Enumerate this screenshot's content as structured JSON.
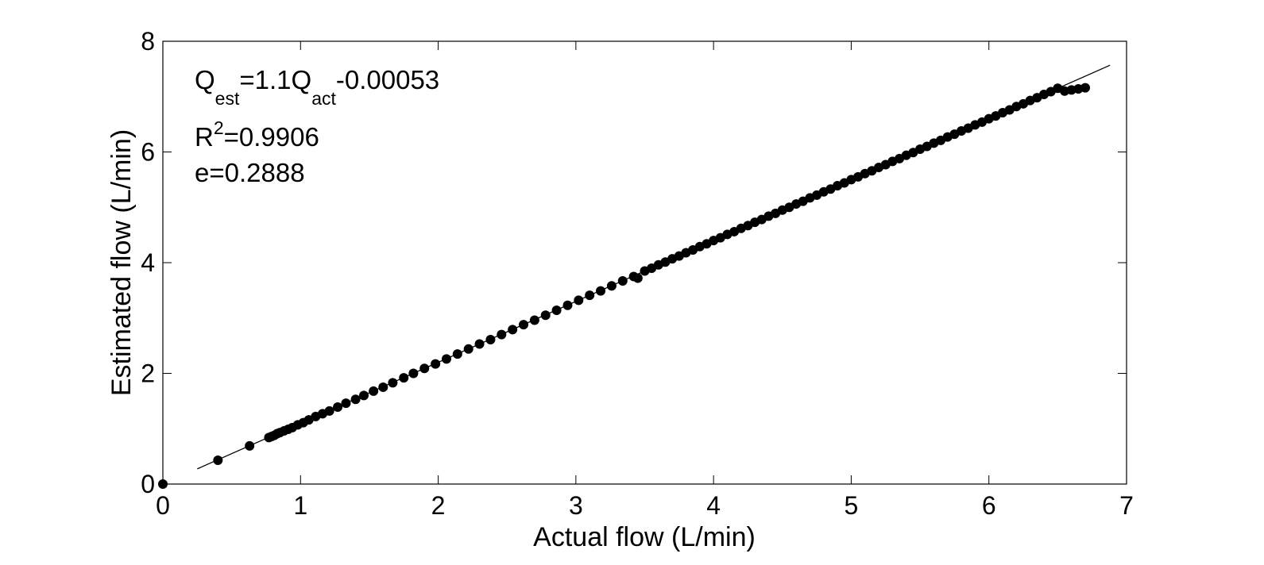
{
  "chart_data": {
    "type": "scatter",
    "title": "",
    "xlabel": "Actual flow (L/min)",
    "ylabel": "Estimated flow (L/min)",
    "xlim": [
      0,
      7
    ],
    "ylim": [
      0,
      8
    ],
    "xticks": [
      0,
      1,
      2,
      3,
      4,
      5,
      6,
      7
    ],
    "yticks": [
      0,
      2,
      4,
      6,
      8
    ],
    "grid": false,
    "legend": "none",
    "annotations": {
      "equation": {
        "q": "Q",
        "est": "est",
        "mid": "=1.1Q",
        "act": "act",
        "tail": "-0.00053"
      },
      "r2": {
        "r": "R",
        "sup": "2",
        "value": "=0.9906"
      },
      "e": "e=0.2888"
    },
    "fit_line": {
      "slope": 1.1,
      "intercept": -0.00053,
      "x_start": 0.25,
      "x_end": 6.88
    },
    "marker_color": "#000000",
    "series": [
      {
        "x": [
          0,
          0.4,
          0.63,
          0.77,
          0.79,
          0.81,
          0.83,
          0.85,
          0.88,
          0.91,
          0.94,
          0.98,
          1.02,
          1.06,
          1.11,
          1.16,
          1.21,
          1.27,
          1.33,
          1.4,
          1.46,
          1.53,
          1.6,
          1.67,
          1.75,
          1.82,
          1.9,
          1.98,
          2.06,
          2.14,
          2.22,
          2.3,
          2.38,
          2.46,
          2.54,
          2.62,
          2.7,
          2.78,
          2.86,
          2.94,
          3.02,
          3.1,
          3.18,
          3.26,
          3.34,
          3.42,
          3.45,
          3.5,
          3.55,
          3.6,
          3.65,
          3.7,
          3.75,
          3.8,
          3.85,
          3.9,
          3.95,
          4.0,
          4.05,
          4.1,
          4.15,
          4.2,
          4.25,
          4.3,
          4.35,
          4.4,
          4.45,
          4.5,
          4.55,
          4.6,
          4.65,
          4.7,
          4.75,
          4.8,
          4.85,
          4.9,
          4.95,
          5.0,
          5.05,
          5.1,
          5.15,
          5.2,
          5.25,
          5.3,
          5.35,
          5.4,
          5.45,
          5.5,
          5.55,
          5.6,
          5.65,
          5.7,
          5.75,
          5.8,
          5.85,
          5.9,
          5.95,
          6.0,
          6.05,
          6.1,
          6.15,
          6.2,
          6.25,
          6.3,
          6.35,
          6.4,
          6.45,
          6.5,
          6.55,
          6.6,
          6.65,
          6.7
        ],
        "y": [
          0,
          0.43,
          0.69,
          0.84,
          0.86,
          0.88,
          0.91,
          0.93,
          0.96,
          0.99,
          1.02,
          1.07,
          1.11,
          1.16,
          1.22,
          1.27,
          1.32,
          1.39,
          1.46,
          1.53,
          1.6,
          1.68,
          1.75,
          1.83,
          1.92,
          2.0,
          2.09,
          2.17,
          2.26,
          2.35,
          2.44,
          2.53,
          2.61,
          2.7,
          2.79,
          2.88,
          2.96,
          3.05,
          3.14,
          3.23,
          3.32,
          3.41,
          3.49,
          3.58,
          3.67,
          3.75,
          3.72,
          3.85,
          3.9,
          3.96,
          4.01,
          4.07,
          4.12,
          4.18,
          4.23,
          4.29,
          4.34,
          4.4,
          4.45,
          4.51,
          4.56,
          4.62,
          4.67,
          4.73,
          4.78,
          4.84,
          4.89,
          4.95,
          5.0,
          5.06,
          5.11,
          5.17,
          5.22,
          5.28,
          5.33,
          5.39,
          5.44,
          5.5,
          5.55,
          5.61,
          5.66,
          5.72,
          5.77,
          5.83,
          5.88,
          5.94,
          5.99,
          6.05,
          6.1,
          6.16,
          6.21,
          6.27,
          6.32,
          6.38,
          6.43,
          6.49,
          6.54,
          6.6,
          6.65,
          6.71,
          6.76,
          6.82,
          6.87,
          6.93,
          6.98,
          7.04,
          7.09,
          7.15,
          7.1,
          7.12,
          7.14,
          7.16
        ]
      }
    ]
  }
}
